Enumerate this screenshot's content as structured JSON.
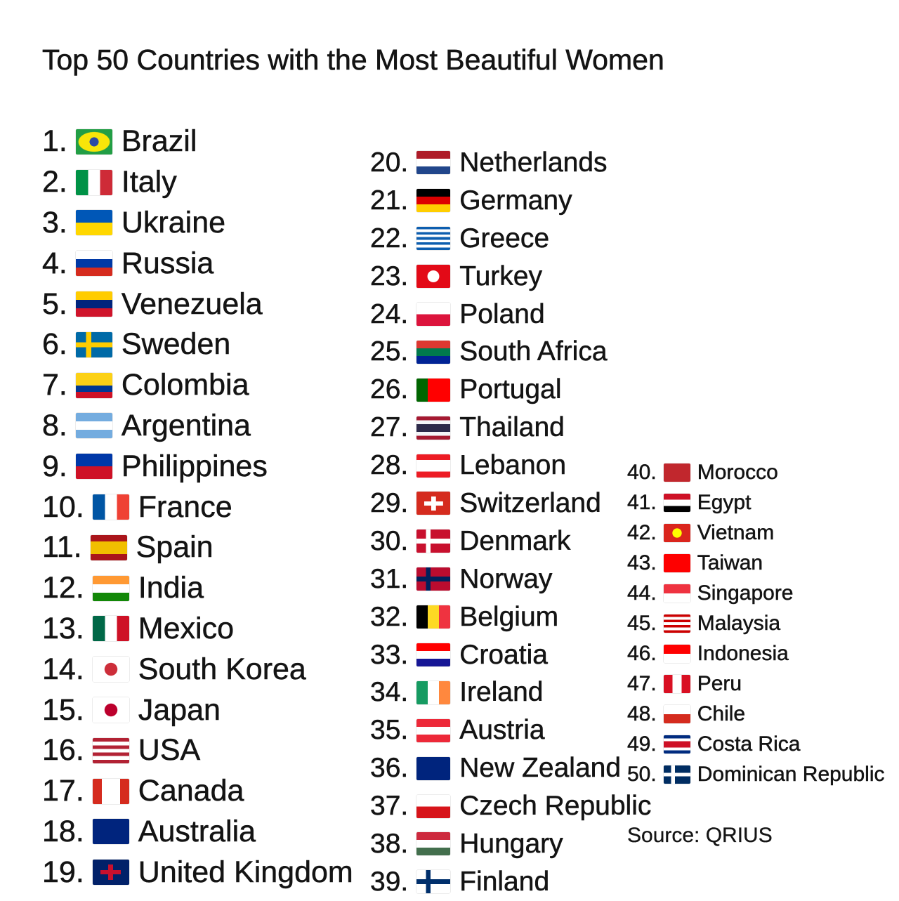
{
  "title": "Top 50 Countries with the Most Beautiful Women",
  "source": "Source: QRIUS",
  "columns": [
    [
      {
        "rank": "1.",
        "name": "Brazil",
        "flag": {
          "icon": "flag-brazil",
          "type": "diamond",
          "colors": [
            "#229e45",
            "#f8e509",
            "#2b49a3"
          ]
        }
      },
      {
        "rank": "2.",
        "name": "Italy",
        "flag": {
          "icon": "flag-italy",
          "type": "v",
          "colors": [
            "#009246",
            "#ffffff",
            "#ce2b37"
          ]
        }
      },
      {
        "rank": "3.",
        "name": "Ukraine",
        "flag": {
          "icon": "flag-ukraine",
          "type": "h",
          "colors": [
            "#0057b7",
            "#ffd700"
          ]
        }
      },
      {
        "rank": "4.",
        "name": "Russia",
        "flag": {
          "icon": "flag-russia",
          "type": "h",
          "colors": [
            "#ffffff",
            "#0039a6",
            "#d52b1e"
          ]
        }
      },
      {
        "rank": "5.",
        "name": "Venezuela",
        "flag": {
          "icon": "flag-venezuela",
          "type": "h",
          "colors": [
            "#ffcc00",
            "#00247d",
            "#cf142b"
          ]
        }
      },
      {
        "rank": "6.",
        "name": "Sweden",
        "flag": {
          "icon": "flag-sweden",
          "type": "cross",
          "colors": [
            "#006aa7",
            "#fecc00"
          ]
        }
      },
      {
        "rank": "7.",
        "name": "Colombia",
        "flag": {
          "icon": "flag-colombia",
          "type": "h",
          "colors": [
            "#fcd116",
            "#fcd116",
            "#003893",
            "#ce1126"
          ]
        }
      },
      {
        "rank": "8.",
        "name": "Argentina",
        "flag": {
          "icon": "flag-argentina",
          "type": "h",
          "colors": [
            "#74acdf",
            "#ffffff",
            "#74acdf"
          ]
        }
      },
      {
        "rank": "9.",
        "name": "Philippines",
        "flag": {
          "icon": "flag-philippines",
          "type": "h",
          "colors": [
            "#0038a8",
            "#ce1126"
          ]
        }
      },
      {
        "rank": "10.",
        "name": "France",
        "flag": {
          "icon": "flag-france",
          "type": "v",
          "colors": [
            "#0055a4",
            "#ffffff",
            "#ef4135"
          ]
        }
      },
      {
        "rank": "11.",
        "name": "Spain",
        "flag": {
          "icon": "flag-spain",
          "type": "h",
          "colors": [
            "#aa151b",
            "#f1bf00",
            "#f1bf00",
            "#aa151b"
          ]
        }
      },
      {
        "rank": "12.",
        "name": "India",
        "flag": {
          "icon": "flag-india",
          "type": "h",
          "colors": [
            "#ff9933",
            "#ffffff",
            "#138808"
          ]
        }
      },
      {
        "rank": "13.",
        "name": "Mexico",
        "flag": {
          "icon": "flag-mexico",
          "type": "v",
          "colors": [
            "#006847",
            "#ffffff",
            "#ce1126"
          ]
        }
      },
      {
        "rank": "14.",
        "name": "South Korea",
        "flag": {
          "icon": "flag-south-korea",
          "type": "disc",
          "colors": [
            "#ffffff",
            "#cd2e3a"
          ]
        }
      },
      {
        "rank": "15.",
        "name": "Japan",
        "flag": {
          "icon": "flag-japan",
          "type": "disc",
          "colors": [
            "#ffffff",
            "#bc002d"
          ]
        }
      },
      {
        "rank": "16.",
        "name": "USA",
        "flag": {
          "icon": "flag-usa",
          "type": "h",
          "colors": [
            "#b22234",
            "#ffffff",
            "#b22234",
            "#ffffff",
            "#b22234",
            "#ffffff",
            "#b22234"
          ]
        }
      },
      {
        "rank": "17.",
        "name": "Canada",
        "flag": {
          "icon": "flag-canada",
          "type": "v",
          "colors": [
            "#d52b1e",
            "#ffffff",
            "#ffffff",
            "#d52b1e"
          ]
        }
      },
      {
        "rank": "18.",
        "name": "Australia",
        "flag": {
          "icon": "flag-australia",
          "type": "h",
          "colors": [
            "#00247d"
          ]
        }
      },
      {
        "rank": "19.",
        "name": "United Kingdom",
        "flag": {
          "icon": "flag-united-kingdom",
          "type": "plus",
          "colors": [
            "#012169",
            "#c8102e"
          ]
        }
      }
    ],
    [
      {
        "rank": "20.",
        "name": "Netherlands",
        "flag": {
          "icon": "flag-netherlands",
          "type": "h",
          "colors": [
            "#ae1c28",
            "#ffffff",
            "#21468b"
          ]
        }
      },
      {
        "rank": "21.",
        "name": "Germany",
        "flag": {
          "icon": "flag-germany",
          "type": "h",
          "colors": [
            "#000000",
            "#dd0000",
            "#ffce00"
          ]
        }
      },
      {
        "rank": "22.",
        "name": "Greece",
        "flag": {
          "icon": "flag-greece",
          "type": "h",
          "colors": [
            "#0d5eaf",
            "#ffffff",
            "#0d5eaf",
            "#ffffff",
            "#0d5eaf",
            "#ffffff",
            "#0d5eaf",
            "#ffffff",
            "#0d5eaf"
          ]
        }
      },
      {
        "rank": "23.",
        "name": "Turkey",
        "flag": {
          "icon": "flag-turkey",
          "type": "disc",
          "colors": [
            "#e30a17",
            "#ffffff"
          ]
        }
      },
      {
        "rank": "24.",
        "name": "Poland",
        "flag": {
          "icon": "flag-poland",
          "type": "h",
          "colors": [
            "#ffffff",
            "#dc143c"
          ]
        }
      },
      {
        "rank": "25.",
        "name": "South Africa",
        "flag": {
          "icon": "flag-south-africa",
          "type": "h",
          "colors": [
            "#de3831",
            "#007a4d",
            "#002395"
          ]
        }
      },
      {
        "rank": "26.",
        "name": "Portugal",
        "flag": {
          "icon": "flag-portugal",
          "type": "v",
          "colors": [
            "#006600",
            "#ff0000",
            "#ff0000"
          ]
        }
      },
      {
        "rank": "27.",
        "name": "Thailand",
        "flag": {
          "icon": "flag-thailand",
          "type": "h",
          "colors": [
            "#a51931",
            "#f4f5f8",
            "#2d2a4a",
            "#2d2a4a",
            "#f4f5f8",
            "#a51931"
          ]
        }
      },
      {
        "rank": "28.",
        "name": "Lebanon",
        "flag": {
          "icon": "flag-lebanon",
          "type": "h",
          "colors": [
            "#ed1c24",
            "#ffffff",
            "#ffffff",
            "#ed1c24"
          ]
        }
      },
      {
        "rank": "29.",
        "name": "Switzerland",
        "flag": {
          "icon": "flag-switzerland",
          "type": "plus",
          "colors": [
            "#d52b1e",
            "#ffffff"
          ]
        }
      },
      {
        "rank": "30.",
        "name": "Denmark",
        "flag": {
          "icon": "flag-denmark",
          "type": "cross",
          "colors": [
            "#c8102e",
            "#ffffff"
          ]
        }
      },
      {
        "rank": "31.",
        "name": "Norway",
        "flag": {
          "icon": "flag-norway",
          "type": "cross",
          "colors": [
            "#ba0c2f",
            "#00205b"
          ]
        }
      },
      {
        "rank": "32.",
        "name": "Belgium",
        "flag": {
          "icon": "flag-belgium",
          "type": "v",
          "colors": [
            "#000000",
            "#fdda24",
            "#ef3340"
          ]
        }
      },
      {
        "rank": "33.",
        "name": "Croatia",
        "flag": {
          "icon": "flag-croatia",
          "type": "h",
          "colors": [
            "#ff0000",
            "#ffffff",
            "#171796"
          ]
        }
      },
      {
        "rank": "34.",
        "name": "Ireland",
        "flag": {
          "icon": "flag-ireland",
          "type": "v",
          "colors": [
            "#169b62",
            "#ffffff",
            "#ff883e"
          ]
        }
      },
      {
        "rank": "35.",
        "name": "Austria",
        "flag": {
          "icon": "flag-austria",
          "type": "h",
          "colors": [
            "#ed2939",
            "#ffffff",
            "#ed2939"
          ]
        }
      },
      {
        "rank": "36.",
        "name": "New Zealand",
        "flag": {
          "icon": "flag-new-zealand",
          "type": "h",
          "colors": [
            "#00247d"
          ]
        }
      },
      {
        "rank": "37.",
        "name": "Czech Republic",
        "flag": {
          "icon": "flag-czech-republic",
          "type": "h",
          "colors": [
            "#ffffff",
            "#d7141a"
          ]
        }
      },
      {
        "rank": "38.",
        "name": "Hungary",
        "flag": {
          "icon": "flag-hungary",
          "type": "h",
          "colors": [
            "#cd2a3e",
            "#ffffff",
            "#436f4d"
          ]
        }
      },
      {
        "rank": "39.",
        "name": "Finland",
        "flag": {
          "icon": "flag-finland",
          "type": "cross",
          "colors": [
            "#ffffff",
            "#002f6c"
          ]
        }
      }
    ],
    [
      {
        "rank": "40.",
        "name": "Morocco",
        "flag": {
          "icon": "flag-morocco",
          "type": "h",
          "colors": [
            "#c1272d"
          ]
        }
      },
      {
        "rank": "41.",
        "name": "Egypt",
        "flag": {
          "icon": "flag-egypt",
          "type": "h",
          "colors": [
            "#ce1126",
            "#ffffff",
            "#000000"
          ]
        }
      },
      {
        "rank": "42.",
        "name": "Vietnam",
        "flag": {
          "icon": "flag-vietnam",
          "type": "disc",
          "colors": [
            "#da251d",
            "#ffff00"
          ]
        }
      },
      {
        "rank": "43.",
        "name": "Taiwan",
        "flag": {
          "icon": "flag-taiwan",
          "type": "h",
          "colors": [
            "#fe0000"
          ]
        }
      },
      {
        "rank": "44.",
        "name": "Singapore",
        "flag": {
          "icon": "flag-singapore",
          "type": "h",
          "colors": [
            "#ef3340",
            "#ffffff"
          ]
        }
      },
      {
        "rank": "45.",
        "name": "Malaysia",
        "flag": {
          "icon": "flag-malaysia",
          "type": "h",
          "colors": [
            "#cc0001",
            "#ffffff",
            "#cc0001",
            "#ffffff",
            "#cc0001",
            "#ffffff",
            "#cc0001"
          ]
        }
      },
      {
        "rank": "46.",
        "name": "Indonesia",
        "flag": {
          "icon": "flag-indonesia",
          "type": "h",
          "colors": [
            "#ff0000",
            "#ffffff"
          ]
        }
      },
      {
        "rank": "47.",
        "name": "Peru",
        "flag": {
          "icon": "flag-peru",
          "type": "v",
          "colors": [
            "#d91023",
            "#ffffff",
            "#d91023"
          ]
        }
      },
      {
        "rank": "48.",
        "name": "Chile",
        "flag": {
          "icon": "flag-chile",
          "type": "h",
          "colors": [
            "#ffffff",
            "#d52b1e"
          ]
        }
      },
      {
        "rank": "49.",
        "name": "Costa Rica",
        "flag": {
          "icon": "flag-costa-rica",
          "type": "h",
          "colors": [
            "#002b7f",
            "#ffffff",
            "#ce1126",
            "#ce1126",
            "#ffffff",
            "#002b7f"
          ]
        }
      },
      {
        "rank": "50.",
        "name": "Dominican Republic",
        "flag": {
          "icon": "flag-dominican-republic",
          "type": "cross",
          "colors": [
            "#002d62",
            "#ffffff"
          ]
        }
      }
    ]
  ]
}
